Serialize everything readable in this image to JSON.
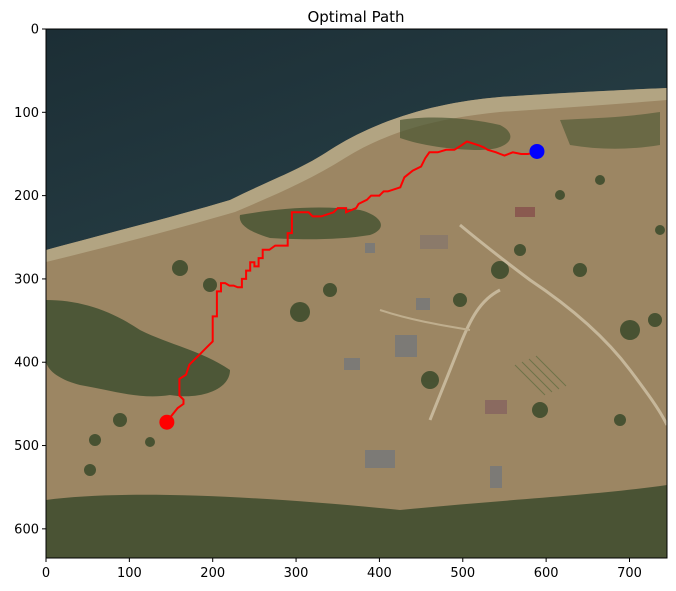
{
  "chart_data": {
    "type": "scatter",
    "title": "Optimal Path",
    "xlabel": "",
    "ylabel": "",
    "xlim": [
      0,
      745
    ],
    "ylim": [
      635,
      0
    ],
    "y_inverted": true,
    "grid": false,
    "legend": "none",
    "background": "aerial satellite image of lake shore, hills, trees and a house compound",
    "x_ticks": [
      0,
      100,
      200,
      300,
      400,
      500,
      600,
      700
    ],
    "x_tick_labels": [
      "0",
      "100",
      "200",
      "300",
      "400",
      "500",
      "600",
      "700"
    ],
    "y_ticks": [
      0,
      100,
      200,
      300,
      400,
      500,
      600
    ],
    "y_tick_labels": [
      "0",
      "100",
      "200",
      "300",
      "400",
      "500",
      "600"
    ],
    "path": {
      "color": "#ff0000",
      "x": [
        145,
        150,
        158,
        165,
        165,
        160,
        160,
        168,
        172,
        180,
        185,
        190,
        195,
        200,
        200,
        205,
        205,
        210,
        210,
        215,
        220,
        225,
        230,
        235,
        235,
        240,
        240,
        245,
        245,
        250,
        250,
        255,
        255,
        260,
        260,
        268,
        275,
        285,
        290,
        290,
        295,
        295,
        300,
        315,
        320,
        330,
        345,
        350,
        360,
        360,
        372,
        375,
        385,
        390,
        400,
        405,
        410,
        425,
        430,
        440,
        450,
        455,
        460,
        470,
        480,
        490,
        498,
        505,
        520,
        525,
        530,
        540,
        545,
        550,
        560,
        570,
        578,
        590
      ],
      "y": [
        472,
        465,
        455,
        450,
        445,
        440,
        420,
        415,
        403,
        395,
        390,
        385,
        380,
        375,
        345,
        345,
        315,
        315,
        305,
        305,
        308,
        308,
        310,
        310,
        300,
        300,
        290,
        290,
        280,
        280,
        285,
        285,
        275,
        275,
        265,
        265,
        260,
        260,
        260,
        245,
        245,
        220,
        220,
        220,
        225,
        225,
        220,
        215,
        215,
        220,
        215,
        210,
        205,
        200,
        200,
        195,
        195,
        190,
        178,
        170,
        165,
        155,
        148,
        148,
        145,
        145,
        140,
        135,
        140,
        142,
        145,
        148,
        150,
        152,
        148,
        150,
        150,
        148
      ]
    },
    "markers": [
      {
        "name": "start",
        "x": 145,
        "y": 472,
        "color": "#ff0000"
      },
      {
        "name": "end",
        "x": 589,
        "y": 147,
        "color": "#0000ff"
      }
    ]
  }
}
